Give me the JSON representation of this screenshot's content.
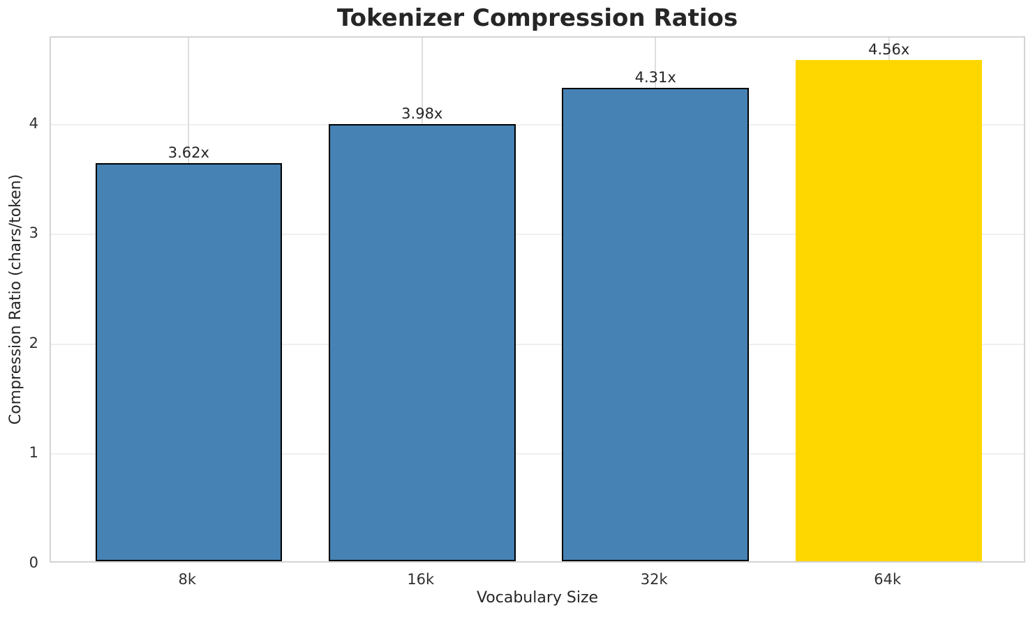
{
  "chart_data": {
    "type": "bar",
    "title": "Tokenizer Compression Ratios",
    "xlabel": "Vocabulary Size",
    "ylabel": "Compression Ratio (chars/token)",
    "categories": [
      "8k",
      "16k",
      "32k",
      "64k"
    ],
    "values": [
      3.62,
      3.98,
      4.31,
      4.56
    ],
    "bar_labels": [
      "3.62x",
      "3.98x",
      "4.31x",
      "4.56x"
    ],
    "yticks": [
      "0",
      "1",
      "2",
      "3",
      "4"
    ],
    "ylim": [
      0,
      4.79
    ],
    "grid": true,
    "legend_position": "none",
    "bar_colors": [
      "#4682b4",
      "#4682b4",
      "#4682b4",
      "#ffd700"
    ],
    "bar_edge_colors": [
      "#000000",
      "#000000",
      "#000000",
      "none"
    ],
    "highlight_index": 3
  },
  "colors": {
    "bar_default": "#4682b4",
    "bar_highlight": "#ffd700",
    "bar_edge": "#000000",
    "text": "#262626",
    "background": "#ffffff"
  }
}
